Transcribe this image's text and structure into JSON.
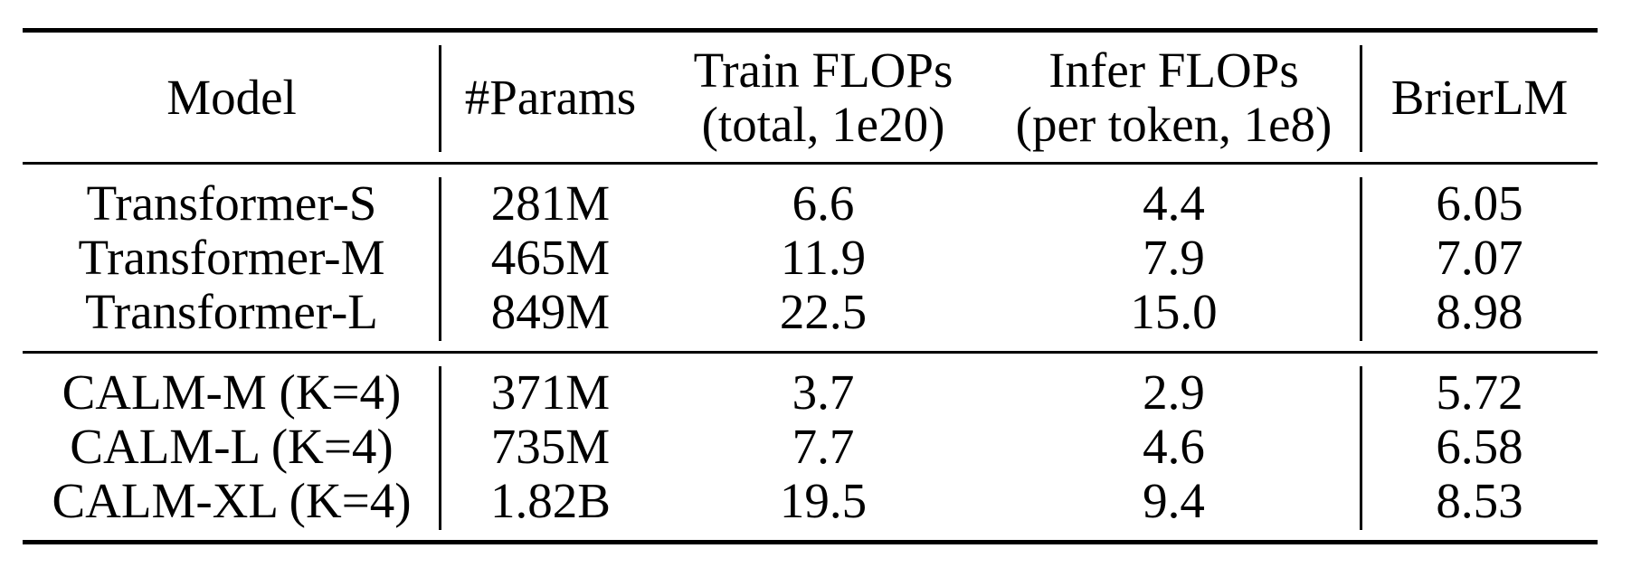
{
  "colors": {
    "background": "#ffffff",
    "text": "#000000",
    "rule": "#000000"
  },
  "table": {
    "columns": [
      {
        "id": "model",
        "label_lines": [
          "Model"
        ]
      },
      {
        "id": "params",
        "label_lines": [
          "#Params"
        ]
      },
      {
        "id": "train_flops",
        "label_lines": [
          "Train FLOPs",
          "(total, 1e20)"
        ]
      },
      {
        "id": "infer_flops",
        "label_lines": [
          "Infer FLOPs",
          "(per token, 1e8)"
        ]
      },
      {
        "id": "brierlm",
        "label_lines": [
          "BrierLM"
        ]
      }
    ],
    "groups": [
      {
        "name": "transformer-baselines",
        "rows": [
          [
            "Transformer-S",
            "281M",
            "6.6",
            "4.4",
            "6.05"
          ],
          [
            "Transformer-M",
            "465M",
            "11.9",
            "7.9",
            "7.07"
          ],
          [
            "Transformer-L",
            "849M",
            "22.5",
            "15.0",
            "8.98"
          ]
        ]
      },
      {
        "name": "calm-models",
        "rows": [
          [
            "CALM-M (K=4)",
            "371M",
            "3.7",
            "2.9",
            "5.72"
          ],
          [
            "CALM-L (K=4)",
            "735M",
            "7.7",
            "4.6",
            "6.58"
          ],
          [
            "CALM-XL (K=4)",
            "1.82B",
            "19.5",
            "9.4",
            "8.53"
          ]
        ]
      }
    ]
  }
}
